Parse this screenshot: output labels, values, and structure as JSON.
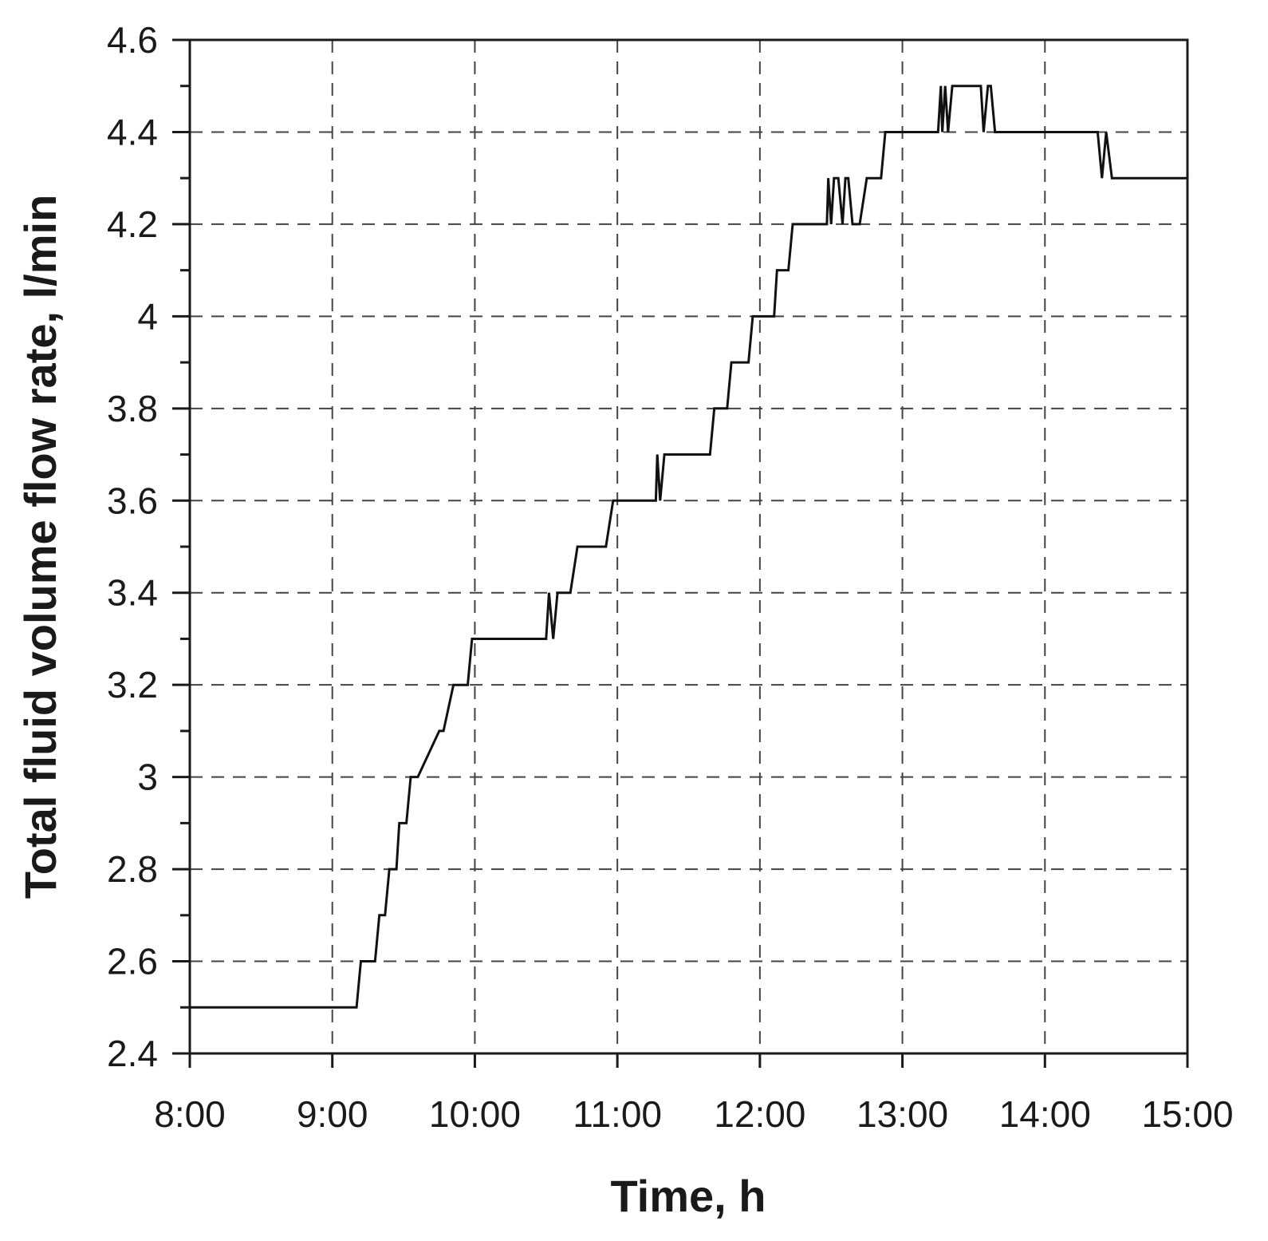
{
  "chart_data": {
    "type": "line",
    "title": "",
    "xlabel": "Time, h",
    "ylabel": "Total fluid volume flow rate, l/min",
    "x_ticks": [
      "8:00",
      "9:00",
      "10:00",
      "11:00",
      "12:00",
      "13:00",
      "14:00",
      "15:00"
    ],
    "xlim": [
      8,
      15
    ],
    "ylim": [
      2.4,
      4.6
    ],
    "y_ticks": [
      "2.4",
      "2.6",
      "2.8",
      "3",
      "3.2",
      "3.4",
      "3.6",
      "3.8",
      "4",
      "4.2",
      "4.4",
      "4.6"
    ],
    "grid": true,
    "colors": {
      "line": "#111111",
      "grid": "#444444",
      "frame": "#1a1a1a"
    },
    "series": [
      {
        "x": [
          8.0,
          9.17,
          9.2,
          9.3,
          9.33,
          9.37,
          9.4,
          9.45,
          9.47,
          9.52,
          9.55,
          9.6,
          9.75,
          9.78,
          9.85,
          9.88,
          9.95,
          9.98,
          10.0,
          10.5,
          10.52,
          10.55,
          10.58,
          10.67,
          10.72,
          10.92,
          10.97,
          11.27,
          11.28,
          11.3,
          11.33,
          11.65,
          11.68,
          11.77,
          11.8,
          11.92,
          11.95,
          12.1,
          12.12,
          12.2,
          12.23,
          12.47,
          12.48,
          12.5,
          12.52,
          12.55,
          12.58,
          12.6,
          12.62,
          12.65,
          12.7,
          12.75,
          12.85,
          12.88,
          13.25,
          13.27,
          13.28,
          13.3,
          13.32,
          13.35,
          13.37,
          13.55,
          13.57,
          13.6,
          13.62,
          13.65,
          14.37,
          14.4,
          14.43,
          14.47,
          15.0
        ],
        "y": [
          2.5,
          2.5,
          2.6,
          2.6,
          2.7,
          2.7,
          2.8,
          2.8,
          2.9,
          2.9,
          3.0,
          3.0,
          3.1,
          3.1,
          3.2,
          3.2,
          3.2,
          3.3,
          3.3,
          3.3,
          3.4,
          3.3,
          3.4,
          3.4,
          3.5,
          3.5,
          3.6,
          3.6,
          3.7,
          3.6,
          3.7,
          3.7,
          3.8,
          3.8,
          3.9,
          3.9,
          4.0,
          4.0,
          4.1,
          4.1,
          4.2,
          4.2,
          4.3,
          4.2,
          4.3,
          4.3,
          4.2,
          4.3,
          4.3,
          4.2,
          4.2,
          4.3,
          4.3,
          4.4,
          4.4,
          4.5,
          4.4,
          4.5,
          4.4,
          4.5,
          4.5,
          4.5,
          4.4,
          4.5,
          4.5,
          4.4,
          4.4,
          4.3,
          4.4,
          4.3,
          4.3
        ]
      }
    ]
  }
}
